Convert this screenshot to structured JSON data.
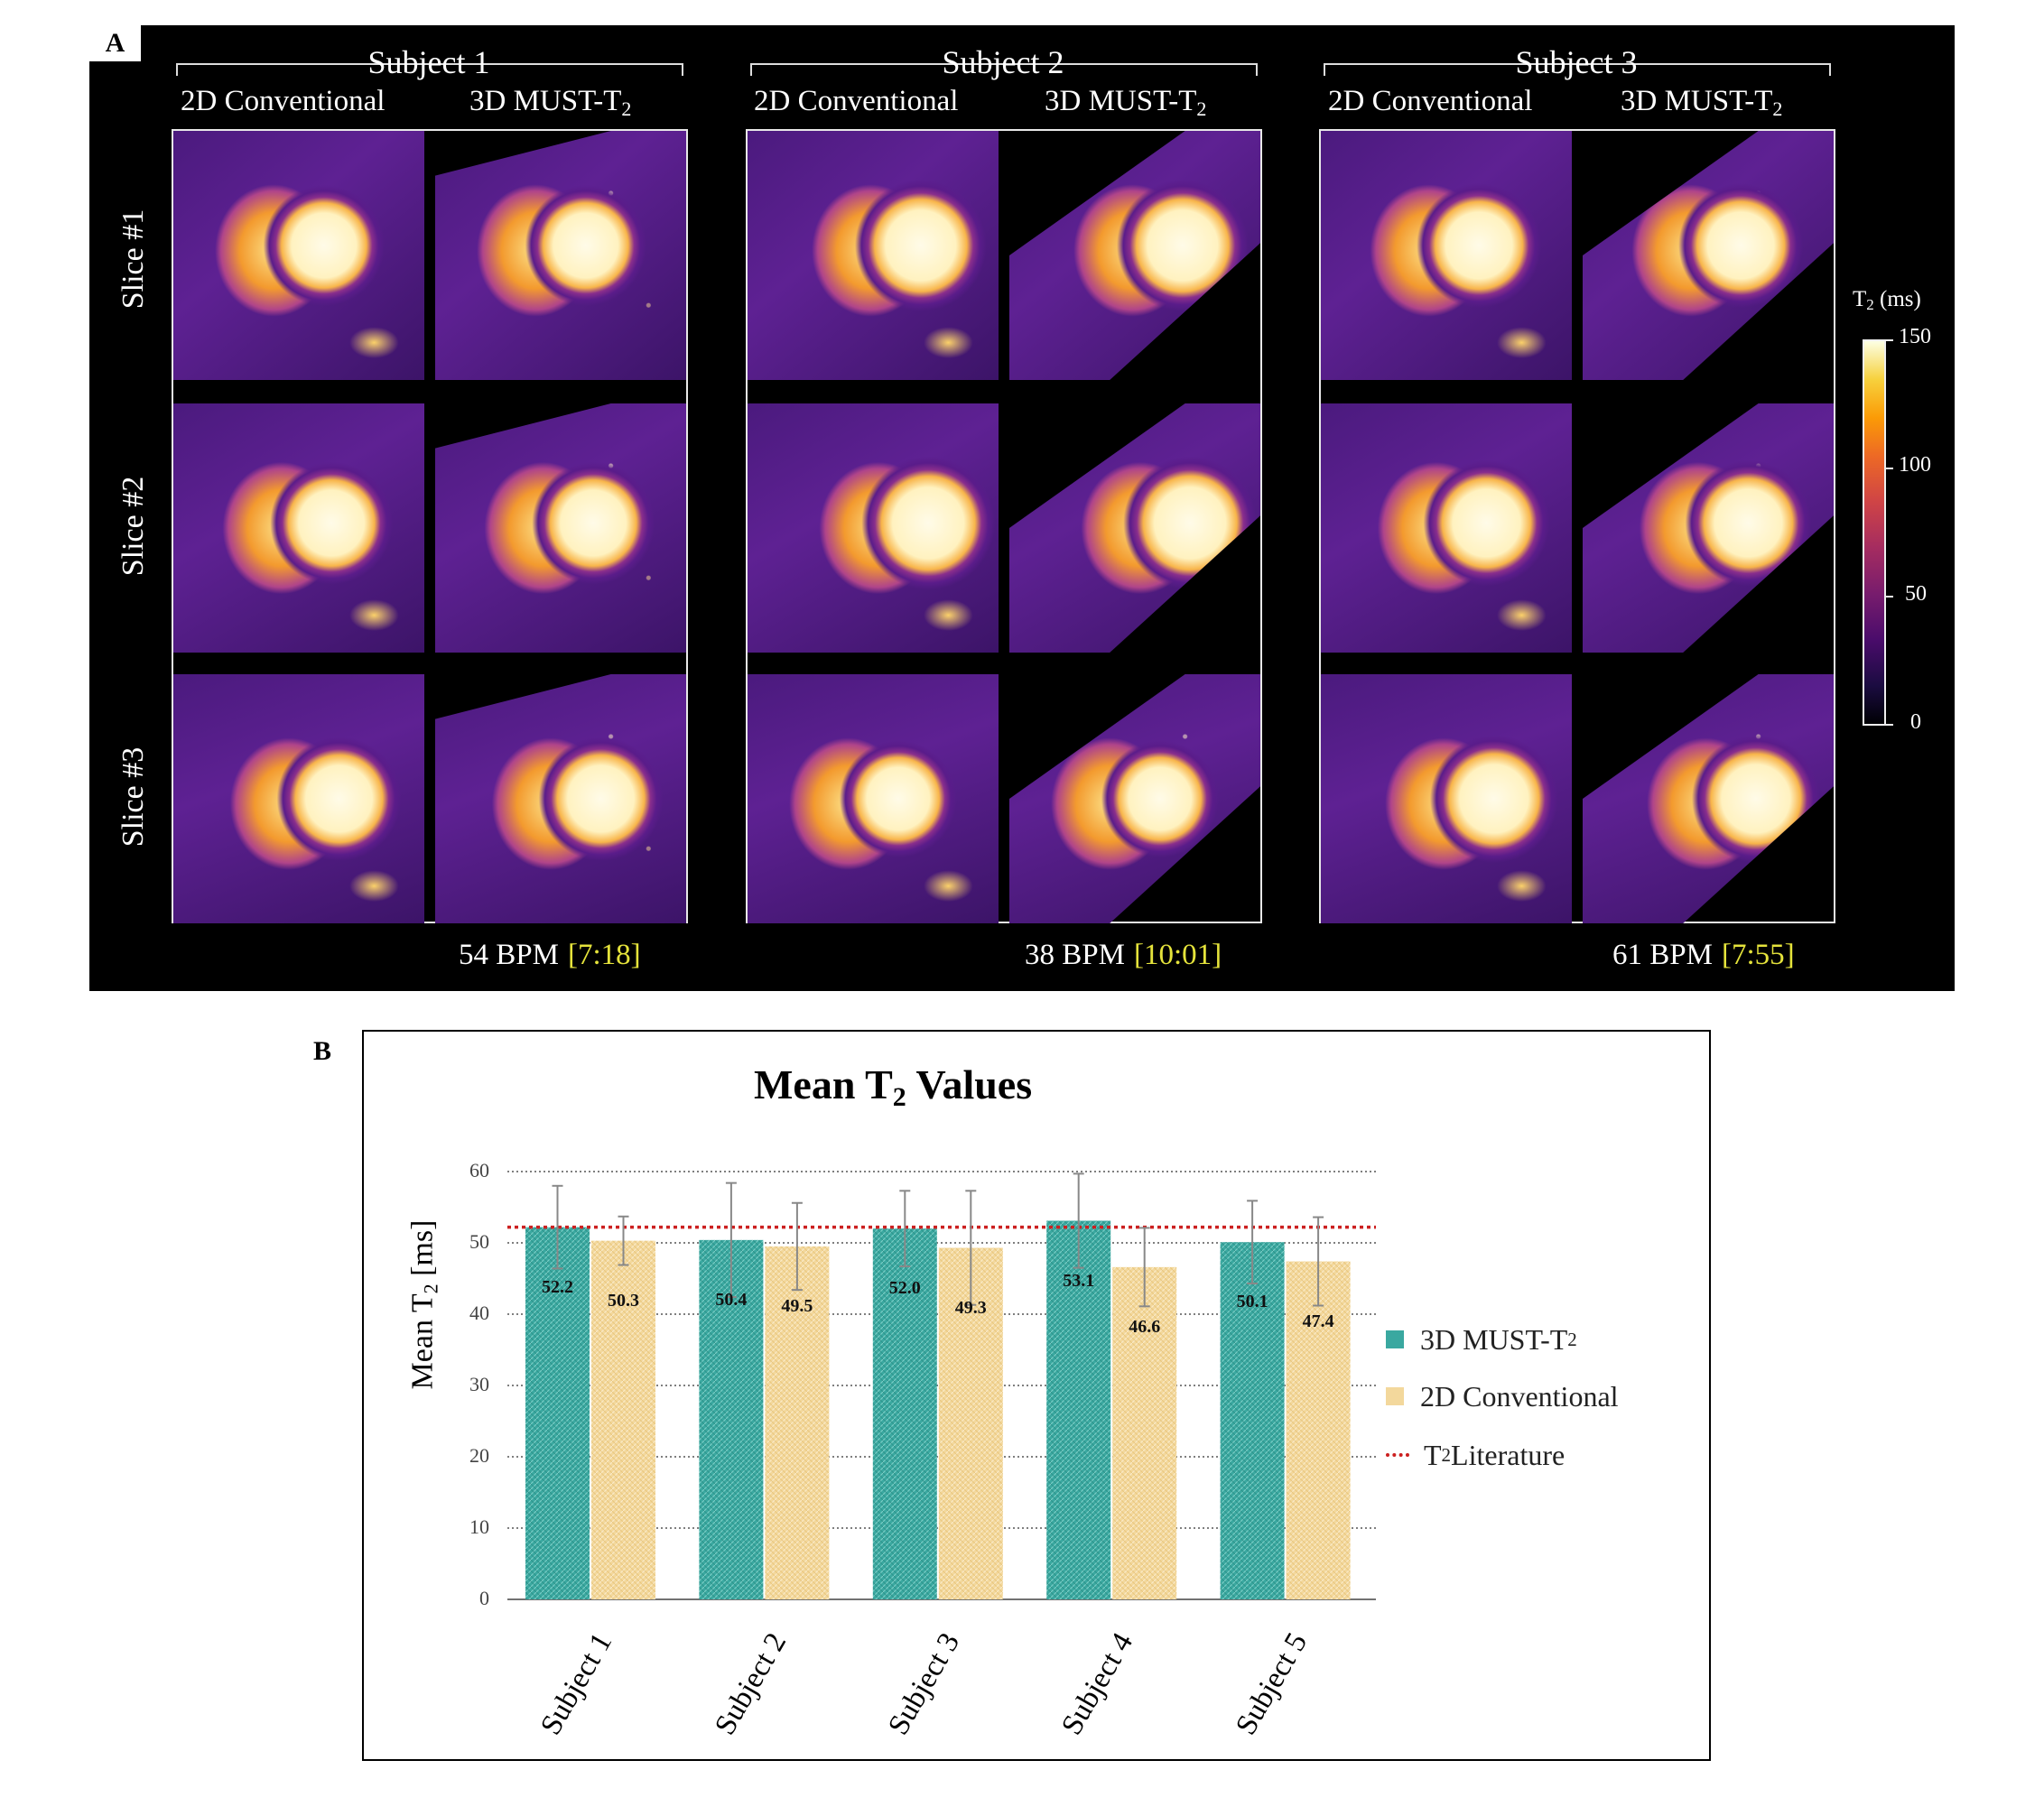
{
  "panel_a": {
    "label": "A",
    "colorbar": {
      "title_prefix": "T",
      "title_sub": "2",
      "title_suffix": " (ms)",
      "ticks": [
        "150",
        "100",
        "50",
        "0"
      ]
    },
    "slice_labels": [
      "Slice #1",
      "Slice #2",
      "Slice #3"
    ],
    "subjects": [
      {
        "title": "Subject 1",
        "col1": "2D Conventional",
        "col2_prefix": "3D MUST-T",
        "col2_sub": "2",
        "bpm": "54 BPM",
        "time": "[7:18]"
      },
      {
        "title": "Subject 2",
        "col1": "2D Conventional",
        "col2_prefix": "3D MUST-T",
        "col2_sub": "2",
        "bpm": "38 BPM",
        "time": "[10:01]"
      },
      {
        "title": "Subject 3",
        "col1": "2D Conventional",
        "col2_prefix": "3D MUST-T",
        "col2_sub": "2",
        "bpm": "61 BPM",
        "time": "[7:55]"
      }
    ]
  },
  "panel_b": {
    "label": "B"
  },
  "chart_data": {
    "type": "bar",
    "title_prefix": "Mean T",
    "title_sub": "2",
    "title_suffix": " Values",
    "ylabel_prefix": "Mean T",
    "ylabel_sub": "2",
    "ylabel_suffix": " [ms]",
    "xlabel": "",
    "ylim": [
      0,
      60
    ],
    "yticks": [
      "0",
      "10",
      "20",
      "30",
      "40",
      "50",
      "60"
    ],
    "grid": true,
    "legend_position": "right",
    "categories": [
      "Subject 1",
      "Subject 2",
      "Subject 3",
      "Subject 4",
      "Subject 5"
    ],
    "series": [
      {
        "name_prefix": "3D MUST-T",
        "name_sub": "2",
        "color": "#3aa8a0",
        "values": [
          52.2,
          50.4,
          52.0,
          53.1,
          50.1
        ],
        "labels": [
          "52.2",
          "50.4",
          "52.0",
          "53.1",
          "50.1"
        ],
        "errors": [
          5.8,
          8.0,
          5.3,
          6.6,
          5.8
        ]
      },
      {
        "name": "2D Conventional",
        "color": "#f3d89c",
        "values": [
          50.3,
          49.5,
          49.3,
          46.6,
          47.4
        ],
        "labels": [
          "50.3",
          "49.5",
          "49.3",
          "46.6",
          "47.4"
        ],
        "errors": [
          3.4,
          6.1,
          8.0,
          5.5,
          6.2
        ]
      }
    ],
    "reference_line": {
      "name_prefix": "T",
      "name_sub": "2",
      "name_suffix": " Literature",
      "value": 52.2,
      "color": "#cc2020"
    }
  }
}
